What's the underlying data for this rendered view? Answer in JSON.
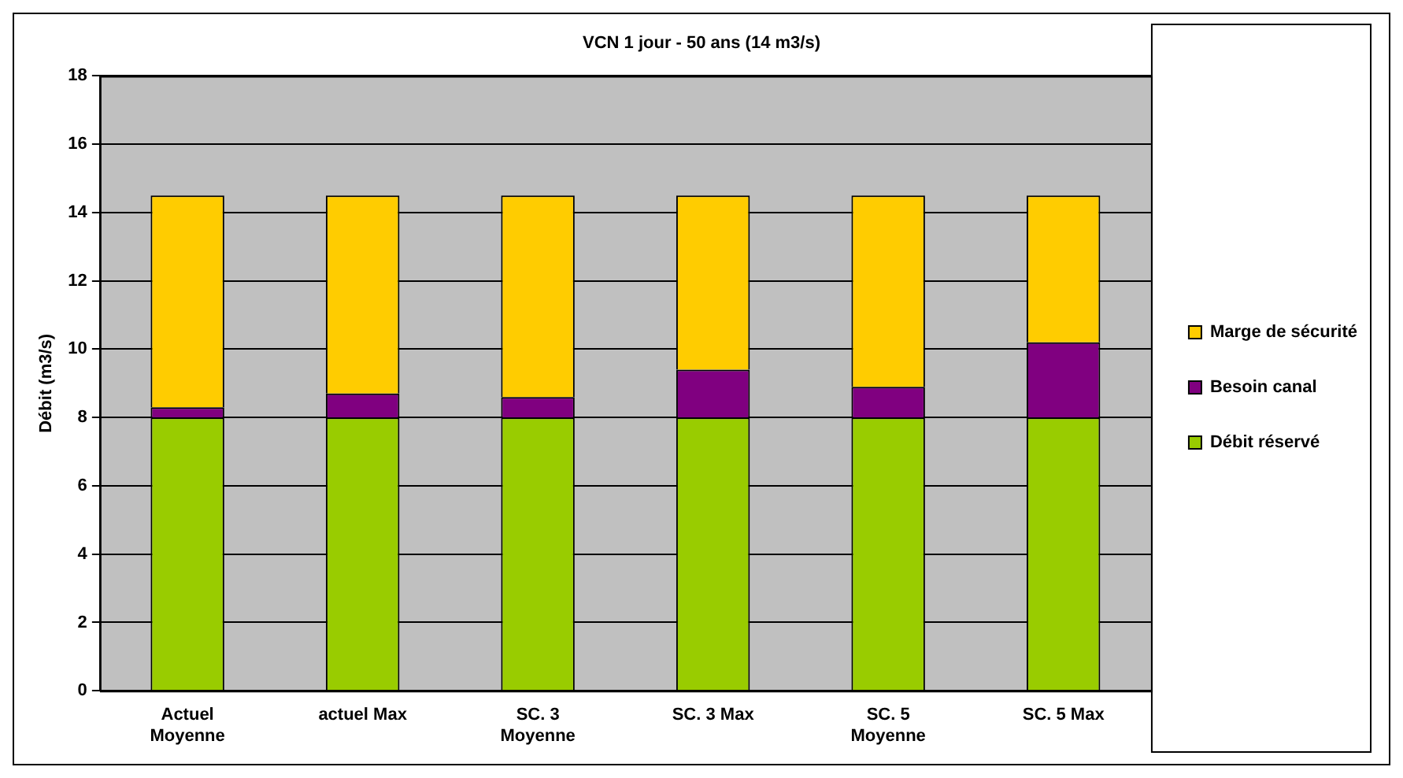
{
  "chart_data": {
    "type": "bar",
    "title": "VCN 1 jour - 50 ans (14 m3/s)",
    "ylabel": "Débit (m3/s)",
    "categories": [
      "Actuel Moyenne",
      "actuel Max",
      "SC. 3 Moyenne",
      "SC. 3 Max",
      "SC. 5 Moyenne",
      "SC. 5 Max"
    ],
    "series": [
      {
        "name": "Débit réservé",
        "color": "#99cc00",
        "values": [
          8,
          8,
          8,
          8,
          8,
          8
        ]
      },
      {
        "name": "Besoin canal",
        "color": "#800080",
        "values": [
          0.3,
          0.7,
          0.6,
          1.4,
          0.9,
          2.2
        ]
      },
      {
        "name": "Marge de sécurité",
        "color": "#ffcc00",
        "values": [
          6.2,
          5.8,
          5.9,
          5.1,
          5.6,
          4.3
        ]
      }
    ],
    "stacked": true,
    "ylim": [
      0,
      18
    ],
    "yticks": [
      0,
      2,
      4,
      6,
      8,
      10,
      12,
      14,
      16,
      18
    ],
    "grid": "y",
    "legend": "right"
  }
}
